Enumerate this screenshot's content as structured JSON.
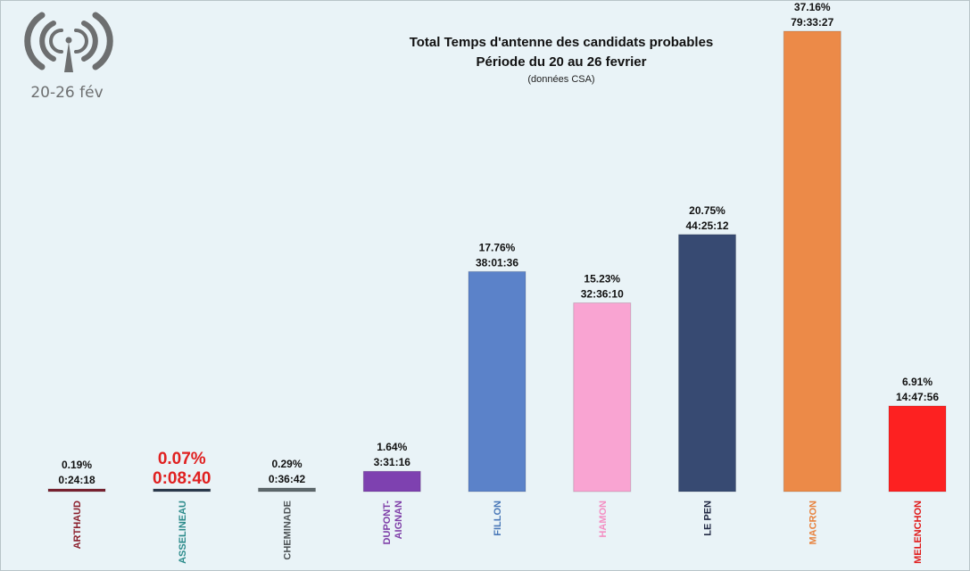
{
  "logo": {
    "icon": "antenna-icon",
    "period_label": "20-26 fév"
  },
  "chart_data": {
    "type": "bar",
    "title": "Total Temps d'antenne des candidats probables",
    "subtitle": "Période du 20 au 26 fevrier",
    "source": "(données CSA)",
    "xlabel": "",
    "ylabel": "",
    "ylim": [
      0,
      37.16
    ],
    "grid": false,
    "categories": [
      "ARTHAUD",
      "ASSELINEAU",
      "CHEMINADE",
      "DUPONT-AIGNAN",
      "FILLON",
      "HAMON",
      "LE PEN",
      "MACRON",
      "MELENCHON"
    ],
    "values": [
      0.19,
      0.07,
      0.29,
      1.64,
      17.76,
      15.23,
      20.75,
      37.16,
      6.91
    ],
    "percent_labels": [
      "0.19%",
      "0.07%",
      "0.29%",
      "1.64%",
      "17.76%",
      "15.23%",
      "20.75%",
      "37.16%",
      "6.91%"
    ],
    "durations": [
      "0:24:18",
      "0:08:40",
      "0:36:42",
      "3:31:16",
      "38:01:36",
      "32:36:10",
      "44:25:12",
      "79:33:27",
      "14:47:56"
    ],
    "bar_colors": [
      "#7b2231",
      "#2b3b4e",
      "#5d686c",
      "#7e41b0",
      "#5b82c9",
      "#f9a4d2",
      "#374a72",
      "#ec8a48",
      "#fd2121"
    ],
    "label_colors": [
      "#8b1f2c",
      "#2a8a8a",
      "#4f5558",
      "#7f3fa8",
      "#4a78b8",
      "#f48fc3",
      "#222a45",
      "#e8833f",
      "#e01a1a"
    ],
    "highlight_color": "#e02020"
  }
}
